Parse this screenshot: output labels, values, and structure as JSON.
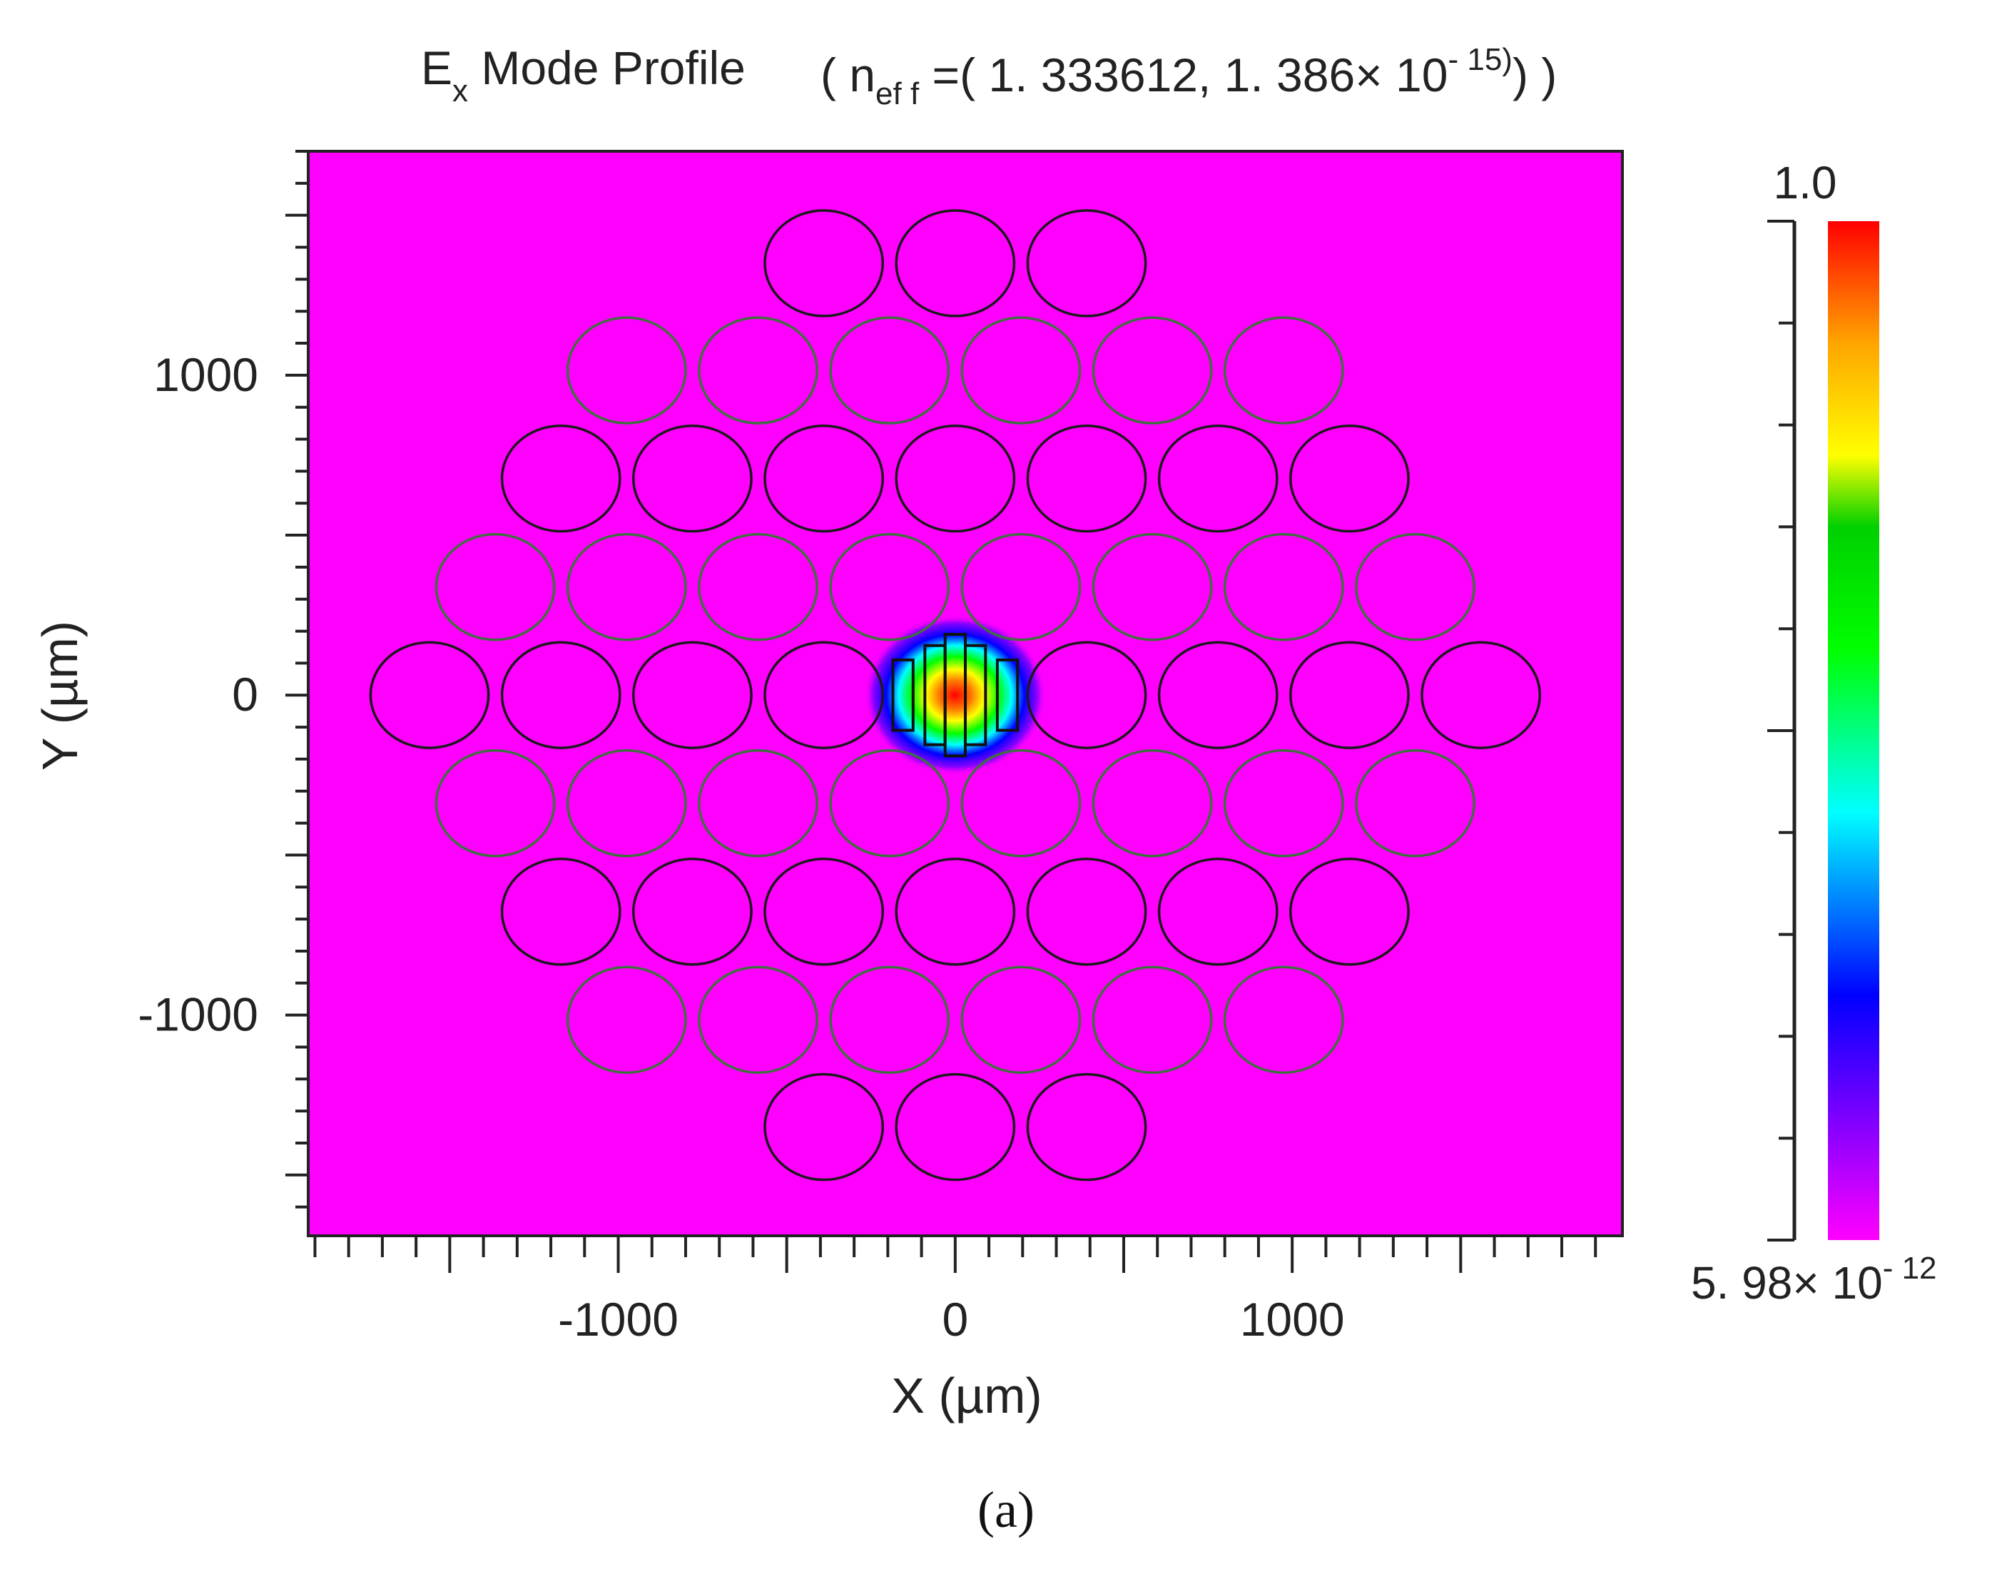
{
  "chart_data": {
    "type": "heatmap",
    "title": {
      "prefix": "E",
      "prefix_sub": "x",
      "main": " Mode Profile",
      "neff_open": "( n",
      "neff_sub": "ef f",
      "neff_body": " =( 1. 333612, 1. 386×  10",
      "neff_sup": "- 15)",
      "neff_close": ") )"
    },
    "xlabel": "X (µm)",
    "ylabel": "Y (µm)",
    "xlim": [
      -1920,
      1980
    ],
    "ylim": [
      -1690,
      1700
    ],
    "xticks": [
      "-1000",
      "0",
      "1000"
    ],
    "xtick_values": [
      -1000,
      0,
      1000
    ],
    "yticks": [
      "1000",
      "0",
      "-1000"
    ],
    "ytick_values": [
      1000,
      0,
      -1000
    ],
    "grid": false,
    "field": {
      "background_color": "#ff00ff",
      "peak_value": 1.0,
      "min_value": 5.98e-12,
      "center": [
        0,
        0
      ],
      "approx_width_um": 540,
      "approx_height_um": 500
    },
    "cladding_holes": {
      "pitch_um": 390,
      "row_spacing_um": 338,
      "diameter_x_um": 350,
      "diameter_y_um": 330,
      "rows": [
        {
          "y": 1350,
          "n": 3,
          "outline": "#1a1a1a"
        },
        {
          "y": 1015,
          "n": 6,
          "outline": "#3f6f3f"
        },
        {
          "y": 677,
          "n": 7,
          "outline": "#1a1a1a"
        },
        {
          "y": 338,
          "n": 8,
          "outline": "#3f6f3f"
        },
        {
          "y": 0,
          "n": 9,
          "outline": "#1a1a1a",
          "omit_center": true
        },
        {
          "y": -338,
          "n": 8,
          "outline": "#3f6f3f"
        },
        {
          "y": -677,
          "n": 7,
          "outline": "#1a1a1a"
        },
        {
          "y": -1015,
          "n": 6,
          "outline": "#3f6f3f"
        },
        {
          "y": -1350,
          "n": 3,
          "outline": "#1a1a1a"
        }
      ]
    },
    "core_slots": [
      {
        "x": -155,
        "half_height_um": 110
      },
      {
        "x": -60,
        "half_height_um": 155
      },
      {
        "x": 0,
        "half_height_um": 190
      },
      {
        "x": 60,
        "half_height_um": 155
      },
      {
        "x": 155,
        "half_height_um": 110
      }
    ],
    "colorbar": {
      "max_label": "1.0",
      "min_label": "5. 98×  10",
      "min_label_sup": "- 12",
      "colors": [
        "#ff00ff",
        "#7d00ff",
        "#0000ff",
        "#00ffff",
        "#00ff00",
        "#00dc00",
        "#ffff00",
        "#ffa500",
        "#ff0000"
      ]
    },
    "panel_label": "(a)"
  }
}
